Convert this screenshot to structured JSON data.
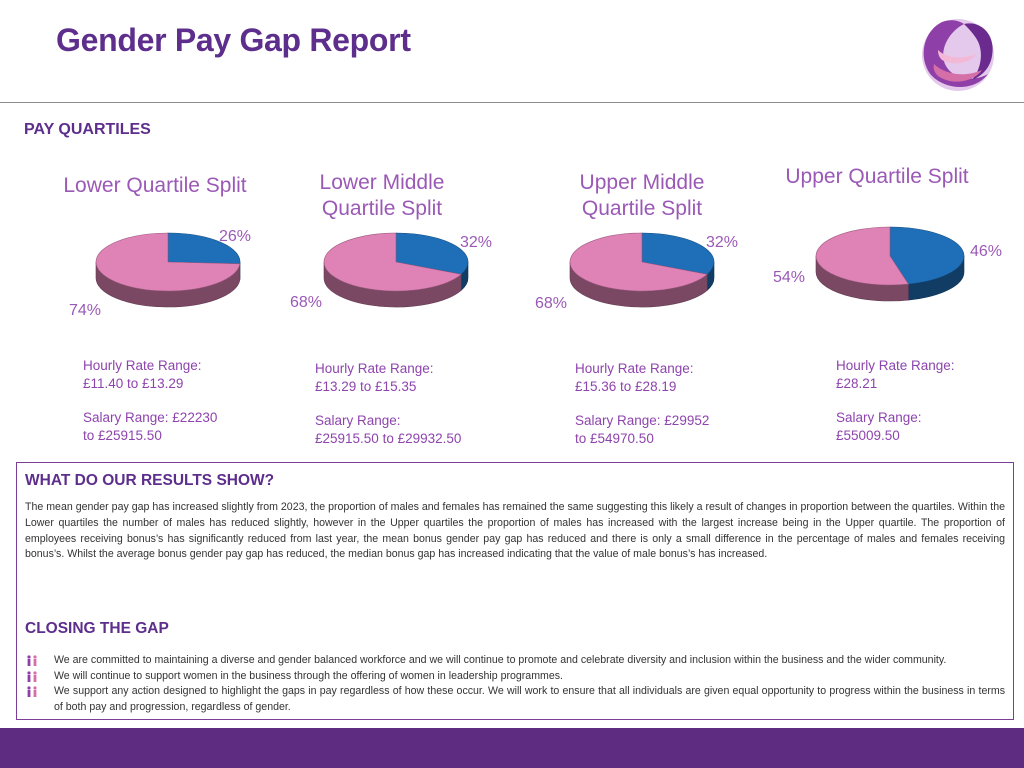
{
  "header": {
    "title": "Gender Pay Gap Report"
  },
  "section_heading": "PAY QUARTILES",
  "colors": {
    "female": "#df82b6",
    "male": "#1f6fb8",
    "brand": "#5d2e8c",
    "accent_text": "#9b59b6"
  },
  "chart_data": [
    {
      "type": "pie",
      "title": "Lower Quartile Split",
      "slices": [
        {
          "label": "26%",
          "value": 26,
          "color": "#1f6fb8"
        },
        {
          "label": "74%",
          "value": 74,
          "color": "#df82b6"
        }
      ]
    },
    {
      "type": "pie",
      "title": "Lower Middle Quartile Split",
      "slices": [
        {
          "label": "32%",
          "value": 32,
          "color": "#1f6fb8"
        },
        {
          "label": "68%",
          "value": 68,
          "color": "#df82b6"
        }
      ]
    },
    {
      "type": "pie",
      "title": "Upper Middle Quartile Split",
      "slices": [
        {
          "label": "32%",
          "value": 32,
          "color": "#1f6fb8"
        },
        {
          "label": "68%",
          "value": 68,
          "color": "#df82b6"
        }
      ]
    },
    {
      "type": "pie",
      "title": "Upper Quartile Split",
      "slices": [
        {
          "label": "46%",
          "value": 46,
          "color": "#1f6fb8"
        },
        {
          "label": "54%",
          "value": 54,
          "color": "#df82b6"
        }
      ]
    }
  ],
  "quartiles": [
    {
      "title_line1": "Lower Quartile Split",
      "title_line2": "",
      "hourly_line1": "Hourly Rate Range:",
      "hourly_line2": "£11.40 to £13.29",
      "salary_line1": "Salary Range: £22230",
      "salary_line2": "to £25915.50"
    },
    {
      "title_line1": "Lower Middle",
      "title_line2": "Quartile Split",
      "hourly_line1": "Hourly Rate Range:",
      "hourly_line2": "£13.29 to £15.35",
      "salary_line1": "Salary Range:",
      "salary_line2": "£25915.50 to £29932.50"
    },
    {
      "title_line1": "Upper Middle",
      "title_line2": "Quartile Split",
      "hourly_line1": "Hourly Rate Range:",
      "hourly_line2": "£15.36 to £28.19",
      "salary_line1": "Salary Range: £29952",
      "salary_line2": "to £54970.50"
    },
    {
      "title_line1": "Upper Quartile Split",
      "title_line2": "",
      "hourly_line1": "Hourly Rate Range:",
      "hourly_line2": "£28.21",
      "salary_line1": "Salary Range:",
      "salary_line2": "£55009.50"
    }
  ],
  "results": {
    "heading": "WHAT DO OUR RESULTS SHOW?",
    "body": "The mean gender pay gap has increased slightly from 2023, the proportion of males and females has remained the same suggesting this likely a result of changes in proportion between the quartiles. Within the Lower quartiles the number of males has reduced slightly, however in the Upper quartiles the proportion of males has increased with the largest increase being in the Upper quartile. The proportion of employees receiving bonus’s has significantly reduced from last year, the mean bonus gender pay gap has reduced and there is only a small difference in the percentage of males and females receiving bonus’s. Whilst the average bonus gender pay gap has reduced, the median bonus gap has increased indicating that the value of male bonus’s has increased."
  },
  "closing": {
    "heading": "CLOSING THE GAP",
    "bullets": [
      "We are committed to maintaining a diverse and gender balanced workforce and we will continue to promote and celebrate diversity and inclusion within the business and the wider community.",
      "We will continue to support women in the business through the offering of women in leadership programmes.",
      "We support any action designed to highlight the gaps in pay regardless of how these occur.  We will work to ensure that all individuals are given equal opportunity to progress within the business in terms of both pay and progression, regardless of gender."
    ]
  }
}
